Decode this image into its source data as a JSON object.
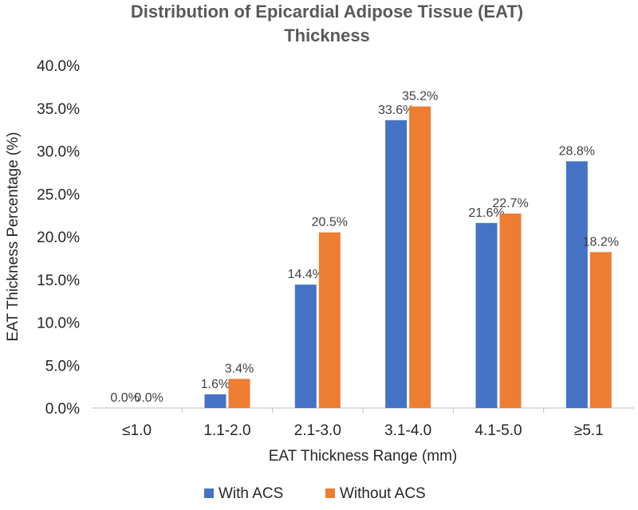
{
  "chart_data": {
    "type": "bar",
    "title": "Distribution of Epicardial Adipose Tissue (EAT) Thickness",
    "title_lines": [
      "Distribution of Epicardial Adipose Tissue (EAT)",
      "Thickness"
    ],
    "xlabel": "EAT Thickness Range (mm)",
    "ylabel": "EAT Thickness Percentage (%)",
    "ylim": [
      0,
      40
    ],
    "yticks": [
      0,
      5,
      10,
      15,
      20,
      25,
      30,
      35,
      40
    ],
    "ytick_labels": [
      "0.0%",
      "5.0%",
      "10.0%",
      "15.0%",
      "20.0%",
      "25.0%",
      "30.0%",
      "35.0%",
      "40.0%"
    ],
    "categories": [
      "≤1.0",
      "1.1-2.0",
      "2.1-3.0",
      "3.1-4.0",
      "4.1-5.0",
      "≥5.1"
    ],
    "series": [
      {
        "name": "With ACS",
        "color": "#4472C4",
        "values": [
          0.0,
          1.6,
          14.4,
          33.6,
          21.6,
          28.8
        ],
        "labels": [
          "0.0%",
          "1.6%",
          "14.4%",
          "33.6%",
          "21.6%",
          "28.8%"
        ]
      },
      {
        "name": "Without ACS",
        "color": "#ED7D31",
        "values": [
          0.0,
          3.4,
          20.5,
          35.2,
          22.7,
          18.2
        ],
        "labels": [
          "0.0%",
          "3.4%",
          "20.5%",
          "35.2%",
          "22.7%",
          "18.2%"
        ]
      }
    ],
    "legend_position": "bottom",
    "grid": false
  }
}
